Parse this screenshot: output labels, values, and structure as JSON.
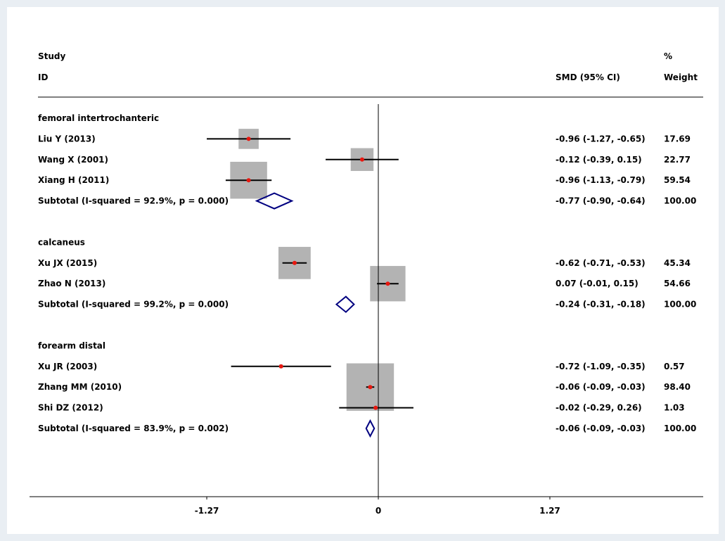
{
  "header": {
    "study_line1": "Study",
    "study_line2": "ID",
    "smd_header": "SMD (95% CI)",
    "weight_line1": "%",
    "weight_line2": "Weight"
  },
  "chart_data": {
    "type": "forest",
    "x_ticks": [
      {
        "value": -1.27,
        "label": "-1.27"
      },
      {
        "value": 0,
        "label": "0"
      },
      {
        "value": 1.27,
        "label": "1.27"
      }
    ],
    "colors": {
      "point": "#e8170f",
      "box": "#b3b3b3",
      "diamond": "#000080",
      "line": "#000000"
    },
    "groups": [
      {
        "name": "femoral intertrochanteric",
        "studies": [
          {
            "id": "Liu Y (2013)",
            "smd": -0.96,
            "lo": -1.27,
            "hi": -0.65,
            "ci_text": "-0.96 (-1.27, -0.65)",
            "weight": 17.69,
            "weight_text": "17.69"
          },
          {
            "id": "Wang X (2001)",
            "smd": -0.12,
            "lo": -0.39,
            "hi": 0.15,
            "ci_text": "-0.12 (-0.39, 0.15)",
            "weight": 22.77,
            "weight_text": "22.77"
          },
          {
            "id": "Xiang H (2011)",
            "smd": -0.96,
            "lo": -1.13,
            "hi": -0.79,
            "ci_text": "-0.96 (-1.13, -0.79)",
            "weight": 59.54,
            "weight_text": "59.54"
          }
        ],
        "subtotal": {
          "label": "Subtotal  (I-squared = 92.9%, p = 0.000)",
          "smd": -0.77,
          "lo": -0.9,
          "hi": -0.64,
          "ci_text": "-0.77 (-0.90, -0.64)",
          "weight_text": "100.00"
        }
      },
      {
        "name": "calcaneus",
        "studies": [
          {
            "id": "Xu JX (2015)",
            "smd": -0.62,
            "lo": -0.71,
            "hi": -0.53,
            "ci_text": "-0.62 (-0.71, -0.53)",
            "weight": 45.34,
            "weight_text": "45.34"
          },
          {
            "id": "Zhao N (2013)",
            "smd": 0.07,
            "lo": -0.01,
            "hi": 0.15,
            "ci_text": "0.07 (-0.01, 0.15)",
            "weight": 54.66,
            "weight_text": "54.66"
          }
        ],
        "subtotal": {
          "label": "Subtotal  (I-squared = 99.2%, p = 0.000)",
          "smd": -0.24,
          "lo": -0.31,
          "hi": -0.18,
          "ci_text": "-0.24 (-0.31, -0.18)",
          "weight_text": "100.00"
        }
      },
      {
        "name": "forearm distal",
        "studies": [
          {
            "id": "Xu JR (2003)",
            "smd": -0.72,
            "lo": -1.09,
            "hi": -0.35,
            "ci_text": "-0.72 (-1.09, -0.35)",
            "weight": 0.57,
            "weight_text": "0.57"
          },
          {
            "id": "Zhang MM (2010)",
            "smd": -0.06,
            "lo": -0.09,
            "hi": -0.03,
            "ci_text": "-0.06 (-0.09, -0.03)",
            "weight": 98.4,
            "weight_text": "98.40"
          },
          {
            "id": "Shi DZ (2012)",
            "smd": -0.02,
            "lo": -0.29,
            "hi": 0.26,
            "ci_text": "-0.02 (-0.29, 0.26)",
            "weight": 1.03,
            "weight_text": "1.03"
          }
        ],
        "subtotal": {
          "label": "Subtotal  (I-squared = 83.9%, p = 0.002)",
          "smd": -0.06,
          "lo": -0.09,
          "hi": -0.03,
          "ci_text": "-0.06 (-0.09, -0.03)",
          "weight_text": "100.00"
        }
      }
    ]
  }
}
